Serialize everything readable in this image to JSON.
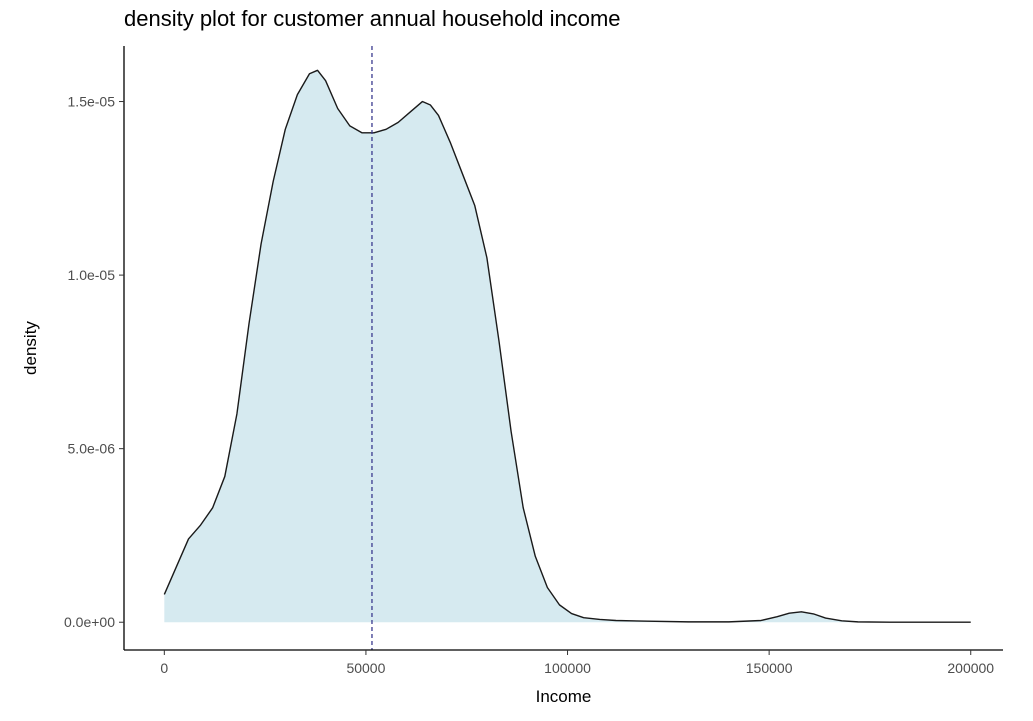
{
  "chart_data": {
    "type": "area",
    "title": "density plot for customer annual household income",
    "xlabel": "Income",
    "ylabel": "density",
    "xlim": [
      -10000,
      208000
    ],
    "ylim": [
      -8e-07,
      1.66e-05
    ],
    "x_ticks": [
      0,
      50000,
      100000,
      150000,
      200000
    ],
    "x_tick_labels": [
      "0",
      "50000",
      "100000",
      "150000",
      "200000"
    ],
    "y_ticks": [
      0,
      5e-06,
      1e-05,
      1.5e-05
    ],
    "y_tick_labels": [
      "0.0e+00",
      "5.0e-06",
      "1.0e-05",
      "1.5e-05"
    ],
    "grid": false,
    "fill_color": "#d6eaf0",
    "line_color": "#1a1a1a",
    "reference_line": {
      "x": 51500,
      "style": "dashed",
      "color": "#3b3b8f"
    },
    "series": [
      {
        "x": [
          0,
          3000,
          6000,
          9000,
          12000,
          15000,
          18000,
          21000,
          24000,
          27000,
          30000,
          33000,
          36000,
          38000,
          40000,
          43000,
          46000,
          49000,
          52000,
          55000,
          58000,
          61000,
          64000,
          66000,
          68000,
          71000,
          74000,
          77000,
          80000,
          83000,
          86000,
          89000,
          92000,
          95000,
          98000,
          101000,
          104000,
          108000,
          112000,
          120000,
          130000,
          140000,
          148000,
          152000,
          155000,
          158000,
          161000,
          164000,
          168000,
          172000,
          180000,
          190000,
          200000
        ],
        "y": [
          8e-07,
          1.6e-06,
          2.4e-06,
          2.8e-06,
          3.3e-06,
          4.2e-06,
          6e-06,
          8.6e-06,
          1.09e-05,
          1.27e-05,
          1.42e-05,
          1.52e-05,
          1.58e-05,
          1.59e-05,
          1.56e-05,
          1.48e-05,
          1.43e-05,
          1.41e-05,
          1.41e-05,
          1.42e-05,
          1.44e-05,
          1.47e-05,
          1.5e-05,
          1.49e-05,
          1.46e-05,
          1.38e-05,
          1.29e-05,
          1.2e-05,
          1.05e-05,
          8.1e-06,
          5.5e-06,
          3.3e-06,
          1.9e-06,
          1e-06,
          5e-07,
          2.5e-07,
          1.3e-07,
          8e-08,
          5e-08,
          3e-08,
          1e-08,
          1e-08,
          5e-08,
          1.6e-07,
          2.6e-07,
          3e-07,
          2.4e-07,
          1.2e-07,
          4e-08,
          1e-08,
          0.0,
          0.0,
          0.0
        ]
      }
    ]
  }
}
